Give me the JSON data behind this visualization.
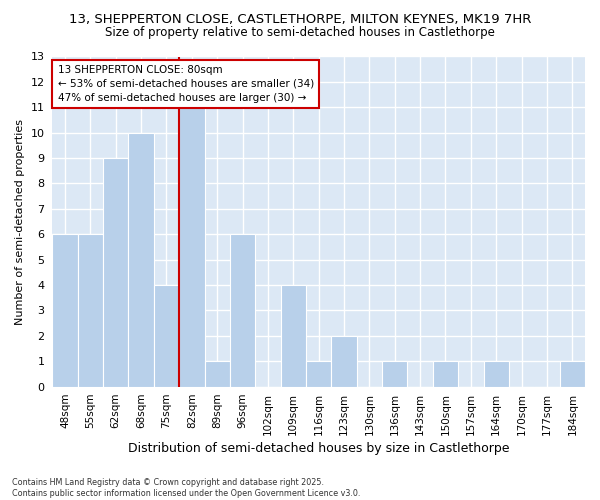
{
  "title_line1": "13, SHEPPERTON CLOSE, CASTLETHORPE, MILTON KEYNES, MK19 7HR",
  "title_line2": "Size of property relative to semi-detached houses in Castlethorpe",
  "xlabel": "Distribution of semi-detached houses by size in Castlethorpe",
  "ylabel": "Number of semi-detached properties",
  "categories": [
    "48sqm",
    "55sqm",
    "62sqm",
    "68sqm",
    "75sqm",
    "82sqm",
    "89sqm",
    "96sqm",
    "102sqm",
    "109sqm",
    "116sqm",
    "123sqm",
    "130sqm",
    "136sqm",
    "143sqm",
    "150sqm",
    "157sqm",
    "164sqm",
    "170sqm",
    "177sqm",
    "184sqm"
  ],
  "values": [
    6,
    6,
    9,
    10,
    4,
    11,
    1,
    6,
    0,
    4,
    1,
    2,
    0,
    1,
    0,
    1,
    0,
    1,
    0,
    0,
    1
  ],
  "bar_color": "#b8d0ea",
  "bar_edge_color": "#ffffff",
  "property_label": "13 SHEPPERTON CLOSE: 80sqm",
  "pct_smaller": 53,
  "pct_larger": 47,
  "count_smaller": 34,
  "count_larger": 30,
  "marker_bin_index": 5,
  "ylim": [
    0,
    13
  ],
  "yticks": [
    0,
    1,
    2,
    3,
    4,
    5,
    6,
    7,
    8,
    9,
    10,
    11,
    12,
    13
  ],
  "annotation_box_color": "#ffffff",
  "annotation_box_edge": "#cc0000",
  "marker_line_color": "#cc0000",
  "plot_bg_color": "#dce8f5",
  "fig_bg_color": "#ffffff",
  "footnote": "Contains HM Land Registry data © Crown copyright and database right 2025.\nContains public sector information licensed under the Open Government Licence v3.0."
}
